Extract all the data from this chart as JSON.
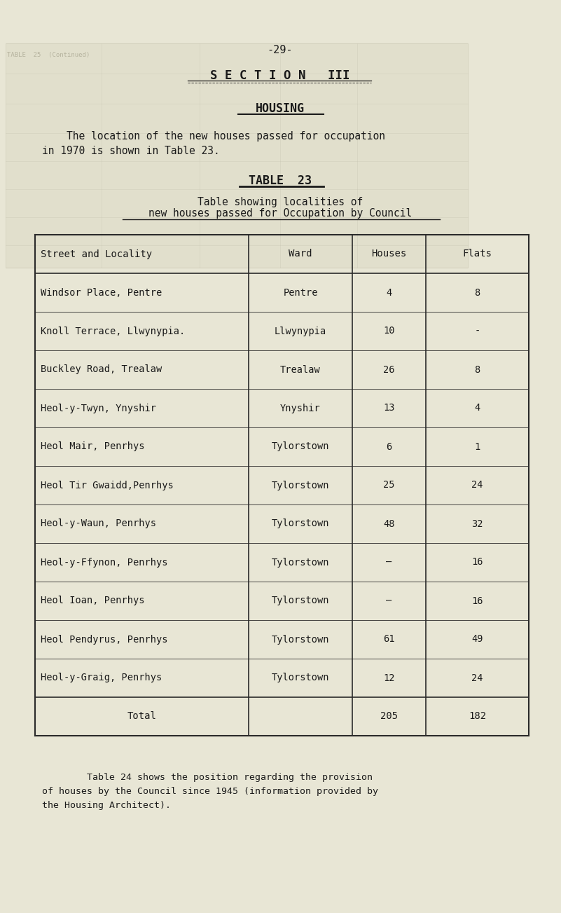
{
  "page_number": "-29-",
  "section_title": "S E C T I O N   III",
  "section_heading": "HOUSING",
  "intro_text_line1": "    The location of the new houses passed for occupation",
  "intro_text_line2": "in 1970 is shown in Table 23.",
  "table_title": "TABLE  23",
  "table_subtitle_line1": "Table showing localities of",
  "table_subtitle_line2": "new houses passed for Occupation by Council",
  "col_headers": [
    "Street and Locality",
    "Ward",
    "Houses",
    "Flats"
  ],
  "rows": [
    [
      "Windsor Place, Pentre",
      "Pentre",
      "4",
      "8"
    ],
    [
      "Knoll Terrace, Llwynypia.",
      "Llwynypia",
      "10",
      "-"
    ],
    [
      "Buckley Road, Trealaw",
      "Trealaw",
      "26",
      "8"
    ],
    [
      "Heol-y-Twyn, Ynyshir",
      "Ynyshir",
      "13",
      "4"
    ],
    [
      "Heol Mair, Penrhys",
      "Tylorstown",
      "6",
      "1"
    ],
    [
      "Heol Tir Gwaidd,Penrhys",
      "Tylorstown",
      "25",
      "24"
    ],
    [
      "Heol-y-Waun, Penrhys",
      "Tylorstown",
      "48",
      "32"
    ],
    [
      "Heol-y-Ffynon, Penrhys",
      "Tylorstown",
      "–",
      "16"
    ],
    [
      "Heol Ioan, Penrhys",
      "Tylorstown",
      "–",
      "16"
    ],
    [
      "Heol Pendyrus, Penrhys",
      "Tylorstown",
      "61",
      "49"
    ],
    [
      "Heol-y-Graig, Penrhys",
      "Tylorstown",
      "12",
      "24"
    ]
  ],
  "total_row": [
    "Total",
    "",
    "205",
    "182"
  ],
  "footer_text_line1": "        Table 24 shows the position regarding the provision",
  "footer_text_line2": "of houses by the Council since 1945 (information provided by",
  "footer_text_line3": "the Housing Architect).",
  "bg_color": "#e8e6d5",
  "text_color": "#1a1a1a",
  "ghost_color": "#ccc9b0"
}
